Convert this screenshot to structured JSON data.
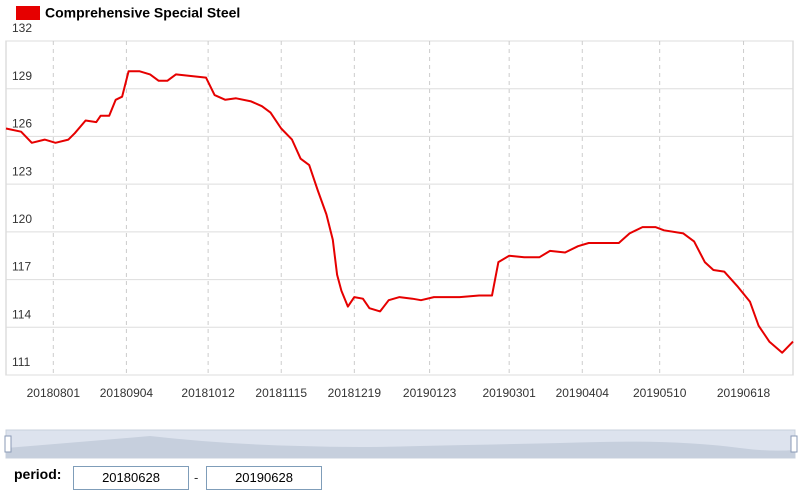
{
  "chart_data": {
    "type": "line",
    "x": [
      "20180710",
      "20180717",
      "20180722",
      "20180728",
      "20180802",
      "20180808",
      "20180811",
      "20180816",
      "20180821",
      "20180823",
      "20180827",
      "20180830",
      "20180902",
      "20180905",
      "20180910",
      "20180915",
      "20180919",
      "20180923",
      "20180927",
      "20181004",
      "20181011",
      "20181015",
      "20181020",
      "20181025",
      "20181101",
      "20181106",
      "20181110",
      "20181115",
      "20181120",
      "20181124",
      "20181128",
      "20181202",
      "20181206",
      "20181209",
      "20181211",
      "20181213",
      "20181216",
      "20181219",
      "20181223",
      "20181226",
      "20181231",
      "20190104",
      "20190109",
      "20190115",
      "20190119",
      "20190125",
      "20190206",
      "20190215",
      "20190221",
      "20190224",
      "20190301",
      "20190308",
      "20190315",
      "20190320",
      "20190327",
      "20190402",
      "20190407",
      "20190414",
      "20190421",
      "20190426",
      "20190502",
      "20190508",
      "20190512",
      "20190521",
      "20190526",
      "20190531",
      "20190604",
      "20190609",
      "20190615",
      "20190621",
      "20190625",
      "20190630",
      "20190706",
      "20190711"
    ],
    "series": [
      {
        "name": "Comprehensive Special Steel",
        "color": "#e60000",
        "values": [
          126.5,
          126.3,
          125.6,
          125.8,
          125.6,
          125.8,
          126.2,
          127.0,
          126.9,
          127.3,
          127.3,
          128.3,
          128.5,
          130.1,
          130.1,
          129.9,
          129.5,
          129.5,
          129.9,
          129.8,
          129.7,
          128.6,
          128.3,
          128.4,
          128.2,
          127.9,
          127.5,
          126.5,
          125.8,
          124.6,
          124.2,
          122.6,
          121.1,
          119.5,
          117.3,
          116.3,
          115.3,
          115.9,
          115.8,
          115.2,
          115.0,
          115.7,
          115.9,
          115.8,
          115.7,
          115.9,
          115.9,
          116.0,
          116.0,
          118.1,
          118.5,
          118.4,
          118.4,
          118.8,
          118.7,
          119.1,
          119.3,
          119.3,
          119.3,
          119.9,
          120.3,
          120.3,
          120.1,
          119.9,
          119.4,
          118.1,
          117.6,
          117.5,
          116.6,
          115.6,
          114.1,
          113.1,
          112.4,
          113.1
        ]
      }
    ],
    "xlim": [
      "20180710",
      "20190711"
    ],
    "xticks": [
      "20180801",
      "20180904",
      "20181012",
      "20181115",
      "20181219",
      "20190123",
      "20190301",
      "20190404",
      "20190510",
      "20190618"
    ],
    "ylim": [
      111,
      132
    ],
    "yticks": [
      111,
      114,
      117,
      120,
      123,
      126,
      129,
      132
    ],
    "grid": true
  },
  "period": {
    "label": "period:",
    "start": "20180628",
    "separator": "-",
    "end": "20190628"
  }
}
